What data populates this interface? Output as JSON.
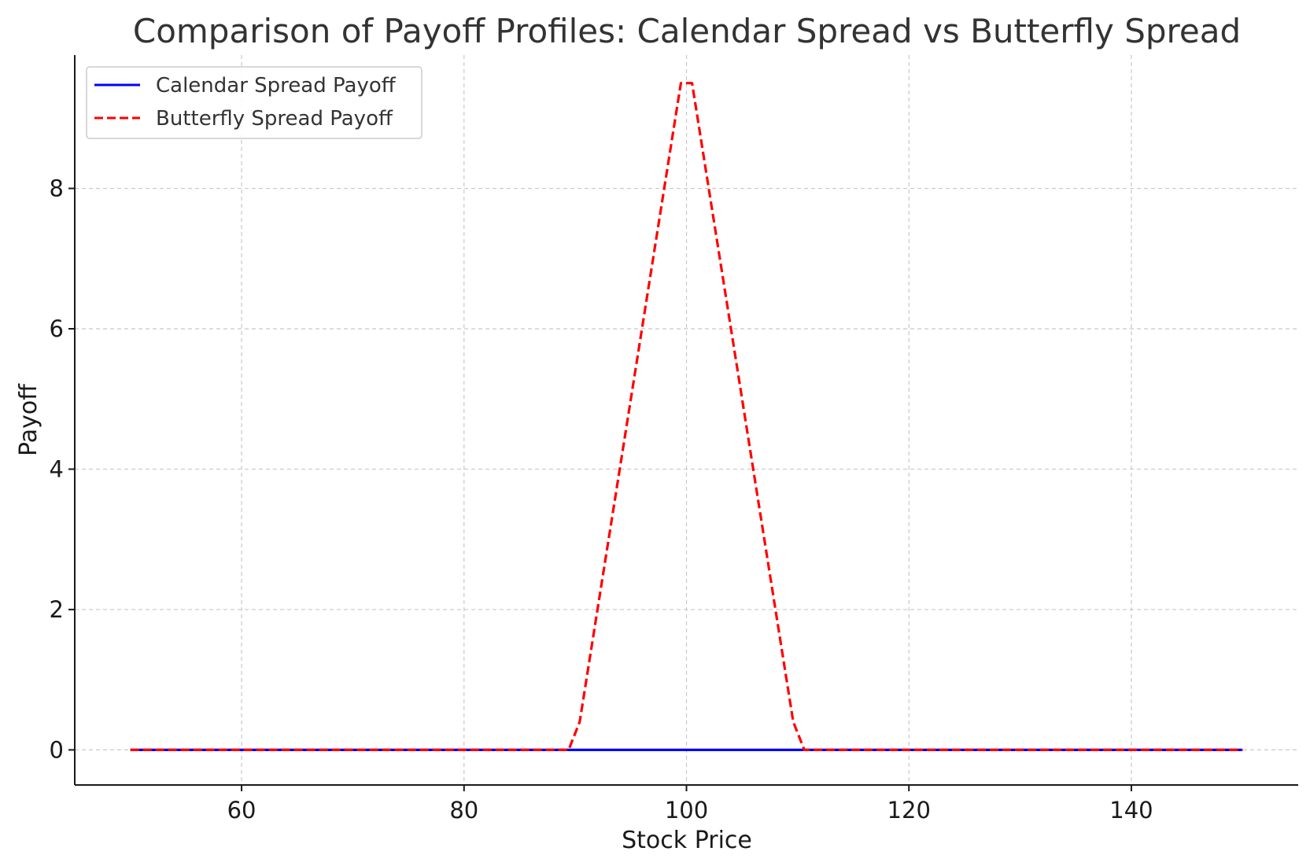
{
  "chart_data": {
    "type": "line",
    "title": "Comparison of Payoff Profiles: Calendar Spread vs Butterfly Spread",
    "xlabel": "Stock Price",
    "ylabel": "Payoff",
    "xlim": [
      45,
      155
    ],
    "ylim": [
      -0.5,
      9.9
    ],
    "xticks": [
      60,
      80,
      100,
      120,
      140
    ],
    "yticks": [
      0,
      2,
      4,
      6,
      8
    ],
    "grid": true,
    "legend_position": "top-left",
    "series": [
      {
        "name": "Calendar Spread Payoff",
        "color": "#0000ff",
        "style": "solid",
        "x": [
          50,
          150
        ],
        "y": [
          0,
          0
        ]
      },
      {
        "name": "Butterfly Spread Payoff",
        "color": "#ff0000",
        "style": "dashed",
        "x": [
          50,
          89.4,
          90.4,
          99.5,
          100.5,
          109.6,
          110.6,
          150
        ],
        "y": [
          0,
          0,
          0.4,
          9.5,
          9.5,
          0.4,
          0,
          0
        ]
      }
    ]
  }
}
